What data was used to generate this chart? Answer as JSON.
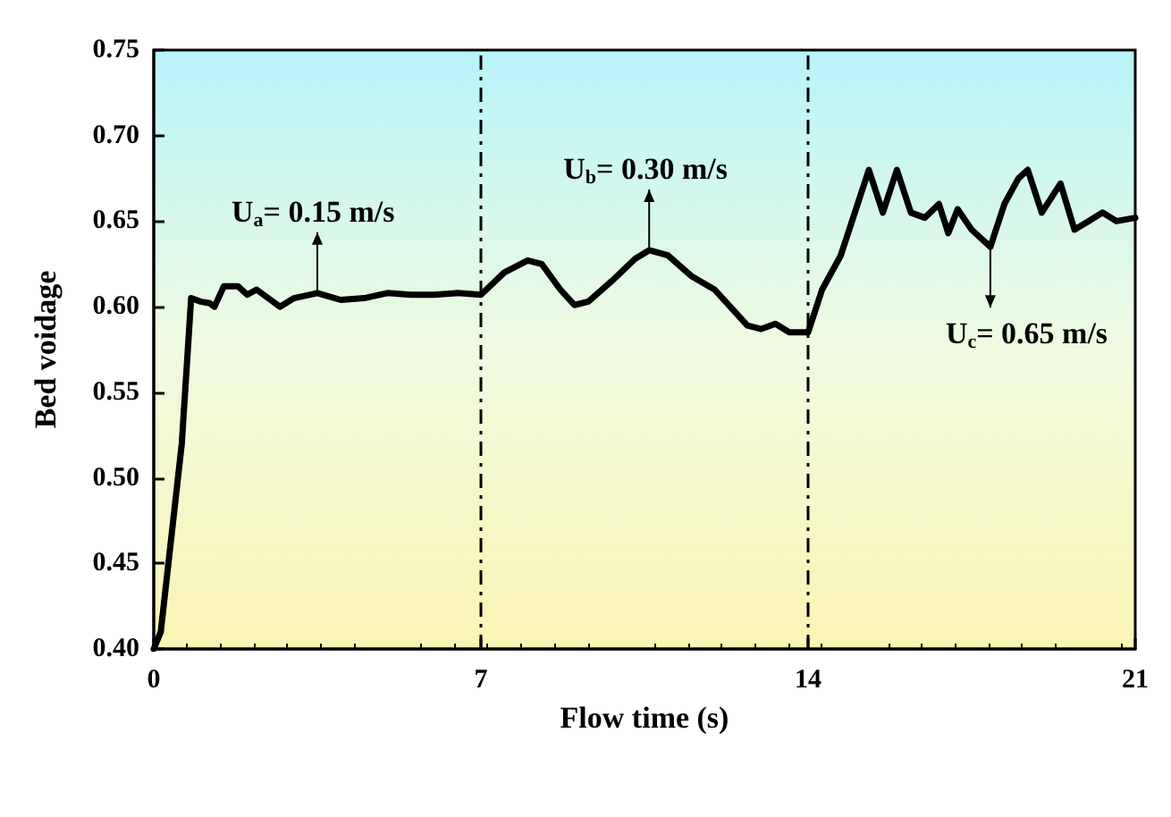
{
  "chart_data": {
    "type": "line",
    "xlabel": "Flow time (s)",
    "ylabel": "Bed voidage",
    "xlim": [
      0,
      21
    ],
    "xticks": [
      0,
      7,
      14,
      21
    ],
    "ylim": [
      0.4,
      0.75
    ],
    "yticks": [
      {
        "value": 0.4,
        "label": "0.40"
      },
      {
        "value": 0.45,
        "label": "0.45"
      },
      {
        "value": 0.5,
        "label": "0.50"
      },
      {
        "value": 0.55,
        "label": "0.55"
      },
      {
        "value": 0.6,
        "label": "0.60"
      },
      {
        "value": 0.65,
        "label": "0.65"
      },
      {
        "value": 0.7,
        "label": "0.70"
      },
      {
        "value": 0.75,
        "label": "0.75"
      }
    ],
    "grid": false,
    "marker": "none",
    "line_style": "solid",
    "x": [
      0,
      0.15,
      0.6,
      0.8,
      1.0,
      1.2,
      1.3,
      1.5,
      1.8,
      2.0,
      2.2,
      2.5,
      2.7,
      3.0,
      3.5,
      4,
      4.5,
      5,
      5.5,
      6,
      6.5,
      7,
      7.5,
      8,
      8.3,
      8.7,
      9,
      9.3,
      9.8,
      10.3,
      10.6,
      11,
      11.5,
      12,
      12.4,
      12.7,
      13.0,
      13.3,
      13.6,
      14,
      14.3,
      14.7,
      15,
      15.3,
      15.6,
      15.9,
      16.2,
      16.5,
      16.8,
      17,
      17.2,
      17.5,
      17.9,
      18.2,
      18.5,
      18.7,
      19,
      19.4,
      19.7,
      20,
      20.3,
      20.6,
      21
    ],
    "series": [
      {
        "color": "#000000",
        "values": [
          0.4,
          0.41,
          0.52,
          0.605,
          0.603,
          0.602,
          0.6,
          0.612,
          0.612,
          0.607,
          0.61,
          0.604,
          0.6,
          0.605,
          0.608,
          0.604,
          0.605,
          0.608,
          0.607,
          0.607,
          0.608,
          0.607,
          0.62,
          0.627,
          0.625,
          0.61,
          0.601,
          0.603,
          0.615,
          0.628,
          0.633,
          0.63,
          0.618,
          0.61,
          0.598,
          0.589,
          0.587,
          0.59,
          0.585,
          0.585,
          0.61,
          0.63,
          0.655,
          0.68,
          0.655,
          0.68,
          0.655,
          0.652,
          0.66,
          0.643,
          0.657,
          0.645,
          0.635,
          0.66,
          0.675,
          0.68,
          0.655,
          0.672,
          0.645,
          0.65,
          0.655,
          0.65,
          0.652
        ]
      }
    ],
    "ref_lines": [
      {
        "axis": "x",
        "value": 7,
        "color": "#000000",
        "line_style": "dashed"
      },
      {
        "axis": "x",
        "value": 14,
        "color": "#000000",
        "line_style": "dashed"
      }
    ],
    "annotations": [
      {
        "text": "U$_{a}$= 0.15 m/s",
        "x": 3.5,
        "y": 0.608
      },
      {
        "text": "U$_{b}$= 0.30 m/s",
        "x": 10.6,
        "y": 0.633
      },
      {
        "text": "U$_{c}$= 0.65 m/s",
        "x": 17.9,
        "y": 0.635
      }
    ]
  }
}
